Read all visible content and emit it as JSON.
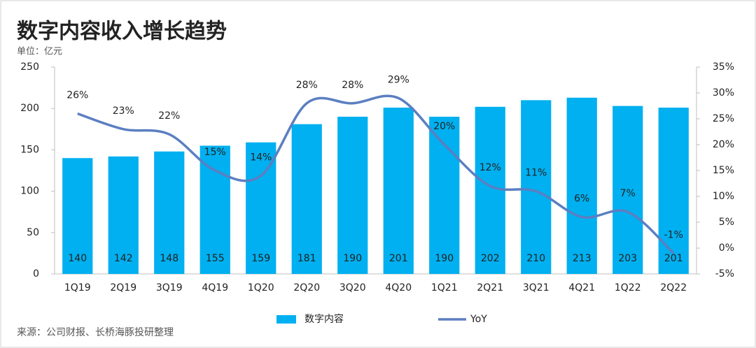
{
  "chart_data": {
    "type": "bar",
    "title": "数字内容收入增长趋势",
    "unit": "单位：亿元",
    "source": "来源：公司财报、长桥海豚投研整理",
    "categories": [
      "1Q19",
      "2Q19",
      "3Q19",
      "4Q19",
      "1Q20",
      "2Q20",
      "3Q20",
      "4Q20",
      "1Q21",
      "2Q21",
      "3Q21",
      "4Q21",
      "1Q22",
      "2Q22"
    ],
    "series": [
      {
        "name": "数字内容",
        "type": "bar",
        "color": "#00b0f0",
        "values": [
          140,
          142,
          148,
          155,
          159,
          181,
          190,
          201,
          190,
          202,
          210,
          213,
          203,
          201
        ]
      },
      {
        "name": "YoY",
        "type": "line",
        "axis": "y2",
        "color": "#5b7fc1",
        "values": [
          26,
          23,
          22,
          15,
          14,
          28,
          28,
          29,
          20,
          12,
          11,
          6,
          7,
          -1
        ],
        "value_labels": [
          "26%",
          "23%",
          "22%",
          "15%",
          "14%",
          "28%",
          "28%",
          "29%",
          "20%",
          "12%",
          "11%",
          "6%",
          "7%",
          "-1%"
        ]
      }
    ],
    "ylim": [
      0,
      250
    ],
    "yticks": [
      0,
      50,
      100,
      150,
      200,
      250
    ],
    "y2lim": [
      -5,
      35
    ],
    "y2ticks": [
      {
        "value": -5,
        "label": "-5%"
      },
      {
        "value": 0,
        "label": "0%"
      },
      {
        "value": 5,
        "label": "5%"
      },
      {
        "value": 10,
        "label": "10%"
      },
      {
        "value": 15,
        "label": "15%"
      },
      {
        "value": 20,
        "label": "20%"
      },
      {
        "value": 25,
        "label": "25%"
      },
      {
        "value": 30,
        "label": "30%"
      },
      {
        "value": 35,
        "label": "35%"
      }
    ],
    "legend": "bottom"
  }
}
